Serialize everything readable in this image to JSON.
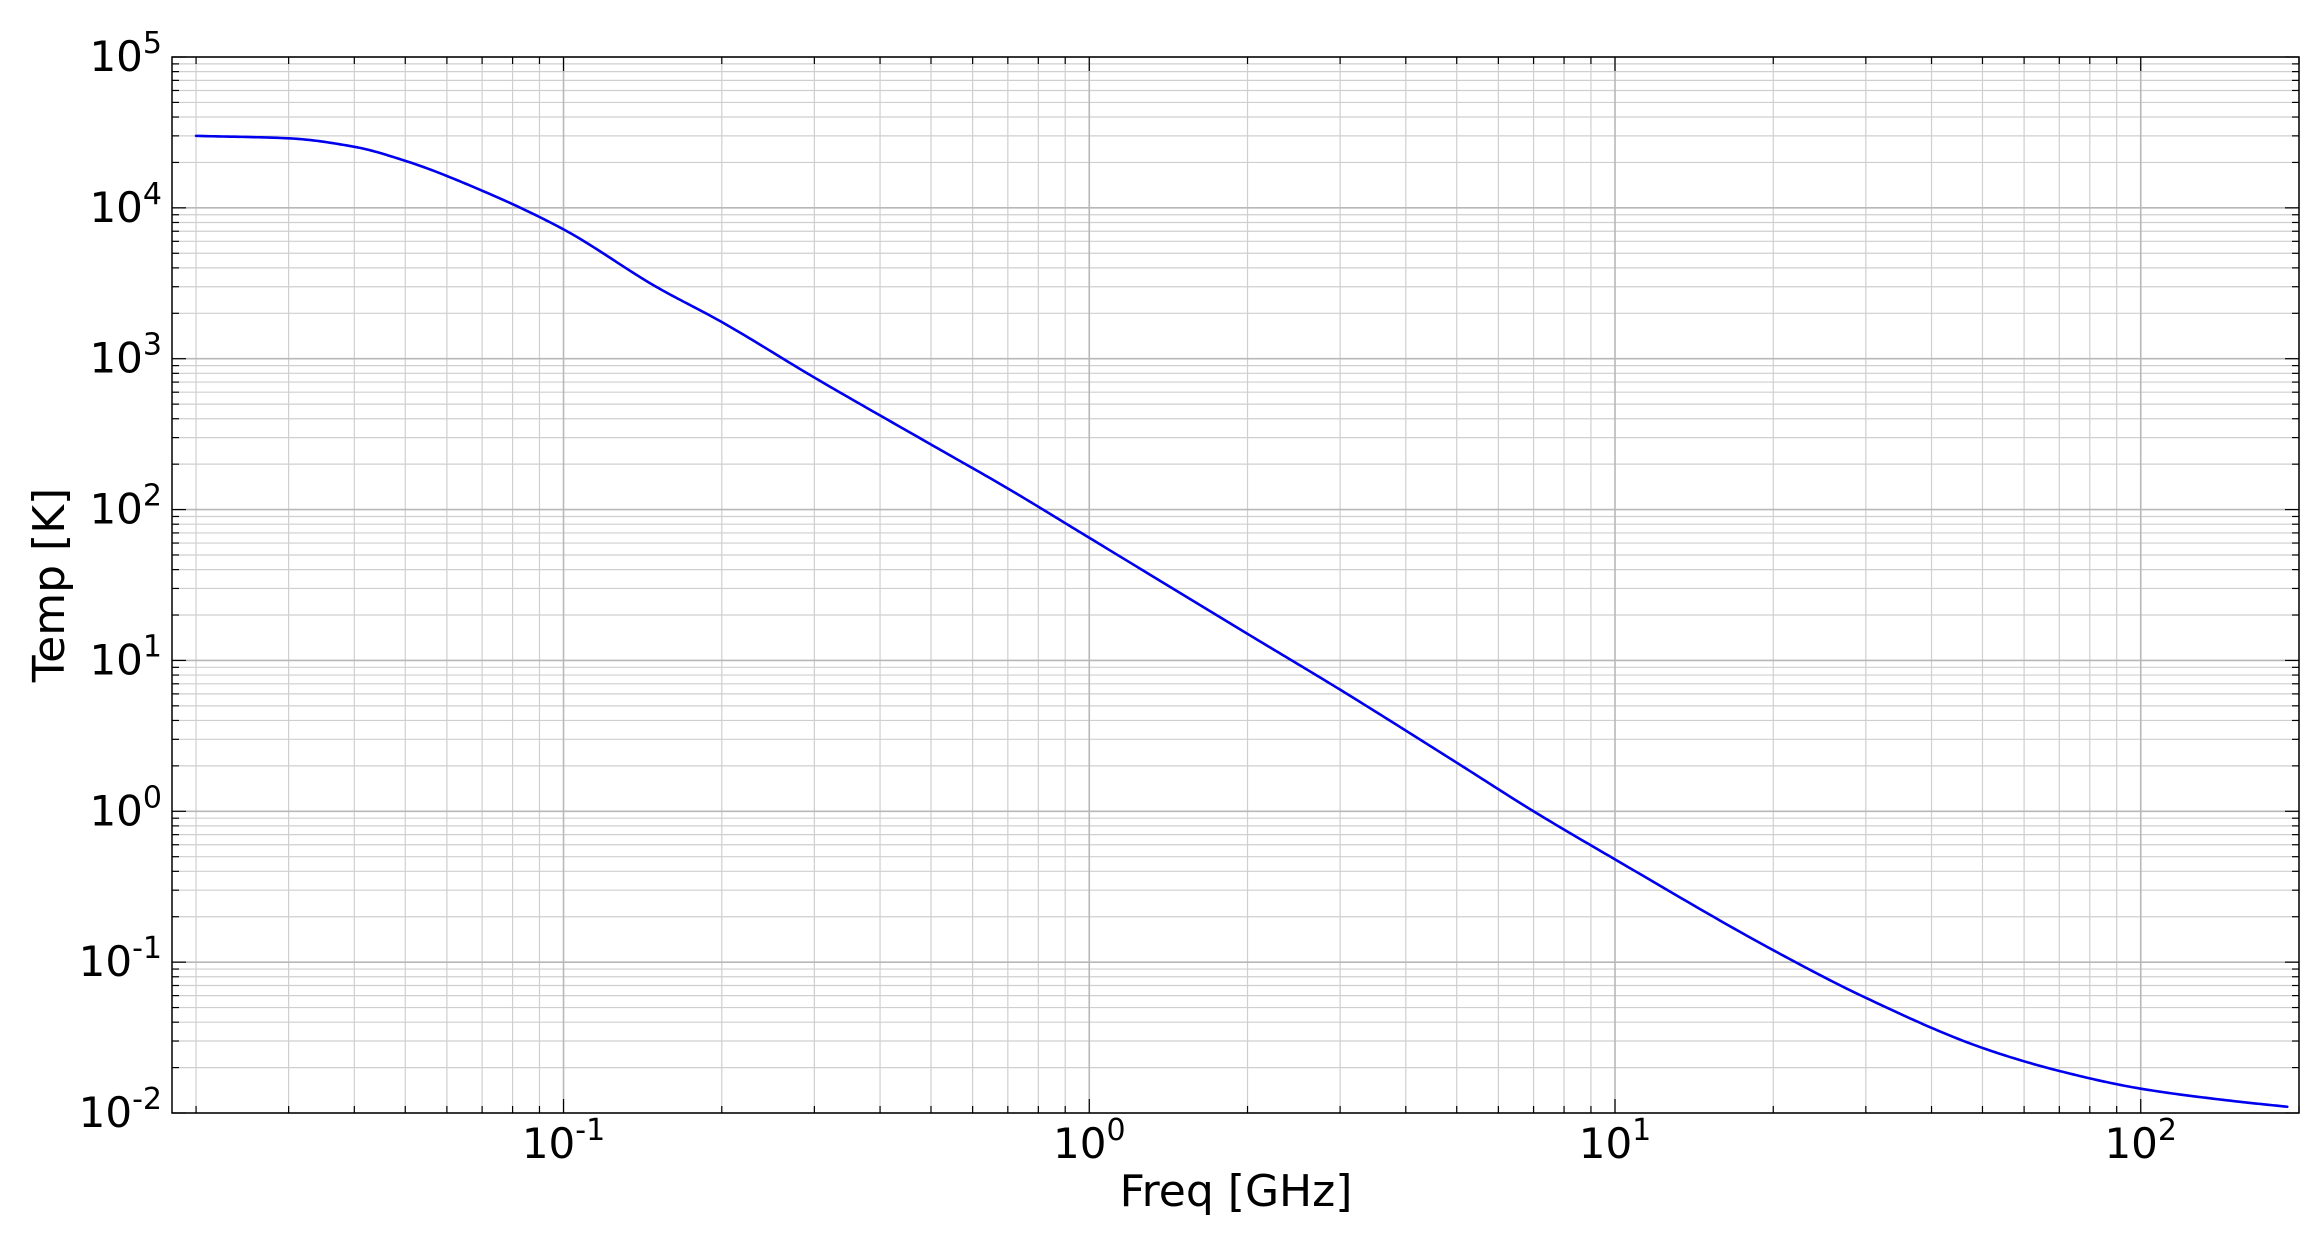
{
  "chart_data": {
    "type": "line",
    "xlabel": "Freq [GHz]",
    "ylabel": "Temp [K]",
    "x_scale": "log",
    "y_scale": "log",
    "xlim": [
      0.018,
      200
    ],
    "ylim": [
      0.01,
      100000
    ],
    "grid": "major and minor",
    "x_ticks": [
      {
        "value": 0.1,
        "base": "10",
        "exp": "-1"
      },
      {
        "value": 1,
        "base": "10",
        "exp": "0"
      },
      {
        "value": 10,
        "base": "10",
        "exp": "1"
      },
      {
        "value": 100,
        "base": "10",
        "exp": "2"
      }
    ],
    "y_ticks": [
      {
        "value": 0.01,
        "base": "10",
        "exp": "-2"
      },
      {
        "value": 0.1,
        "base": "10",
        "exp": "-1"
      },
      {
        "value": 1,
        "base": "10",
        "exp": "0"
      },
      {
        "value": 10,
        "base": "10",
        "exp": "1"
      },
      {
        "value": 100,
        "base": "10",
        "exp": "2"
      },
      {
        "value": 1000,
        "base": "10",
        "exp": "3"
      },
      {
        "value": 10000,
        "base": "10",
        "exp": "4"
      },
      {
        "value": 100000,
        "base": "10",
        "exp": "5"
      }
    ],
    "series": [
      {
        "color": "#0000ee",
        "x": [
          0.02,
          0.03,
          0.04,
          0.05,
          0.07,
          0.1,
          0.15,
          0.2,
          0.3,
          0.5,
          0.7,
          1,
          2,
          3,
          5,
          7,
          10,
          20,
          30,
          50,
          70,
          100,
          150,
          190
        ],
        "y": [
          30000,
          28900,
          25400,
          20500,
          13000,
          7200,
          3000,
          1750,
          750,
          270,
          138,
          65,
          15,
          6.4,
          2.1,
          1.0,
          0.48,
          0.12,
          0.058,
          0.027,
          0.019,
          0.0145,
          0.012,
          0.011
        ]
      }
    ]
  }
}
